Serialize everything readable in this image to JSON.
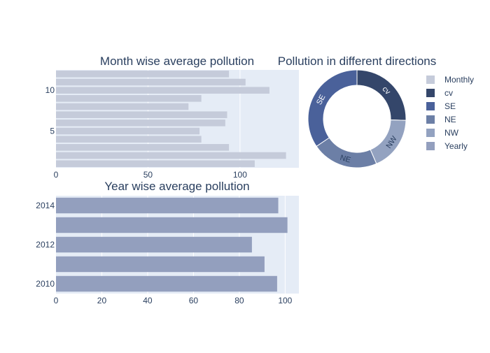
{
  "chart_data": [
    {
      "type": "bar",
      "orientation": "horizontal",
      "title": "Month wise average pollution",
      "series_name": "Monthly",
      "y": [
        1,
        2,
        3,
        4,
        5,
        6,
        7,
        8,
        9,
        10,
        11,
        12
      ],
      "values": [
        108,
        125,
        94,
        79,
        78,
        92,
        93,
        72,
        79,
        116,
        103,
        94
      ],
      "xlim": [
        0,
        132
      ],
      "ylim": [
        0.5,
        12.5
      ],
      "xticks": [
        0,
        50,
        100
      ],
      "yticks": [
        5,
        10
      ],
      "xticklabels": [
        "0",
        "50",
        "100"
      ],
      "yticklabels": [
        "5",
        "10"
      ],
      "color": "#c5cbda",
      "grid": true
    },
    {
      "type": "pie",
      "hole": true,
      "title": "Pollution in different directions",
      "labels": [
        "cv",
        "NW",
        "NE",
        "SE"
      ],
      "values": [
        25.5,
        18,
        22,
        34.5
      ],
      "colors": [
        "#34466a",
        "#93a2c0",
        "#6c7fa6",
        "#4a619a"
      ],
      "text_colors": [
        "#ffffff",
        "#2a3f5f",
        "#2a3f5f",
        "#ffffff"
      ]
    },
    {
      "type": "bar",
      "orientation": "horizontal",
      "title": "Year wise average pollution",
      "series_name": "Yearly",
      "y": [
        2010,
        2011,
        2012,
        2013,
        2014
      ],
      "values": [
        96.5,
        91,
        85.5,
        101,
        97
      ],
      "xlim": [
        0,
        106
      ],
      "ylim": [
        2009.5,
        2014.5
      ],
      "xticks": [
        0,
        20,
        40,
        60,
        80,
        100
      ],
      "yticks": [
        2010,
        2012,
        2014
      ],
      "xticklabels": [
        "0",
        "20",
        "40",
        "60",
        "80",
        "100"
      ],
      "yticklabels": [
        "2010",
        "2012",
        "2014"
      ],
      "color": "#939fbe",
      "grid": true
    }
  ],
  "legend": {
    "placement": "right",
    "items": [
      {
        "name": "Monthly",
        "color": "#c5cbda"
      },
      {
        "name": "cv",
        "color": "#34466a"
      },
      {
        "name": "SE",
        "color": "#4a619a"
      },
      {
        "name": "NE",
        "color": "#6c7fa6"
      },
      {
        "name": "NW",
        "color": "#93a2c0"
      },
      {
        "name": "Yearly",
        "color": "#939fbe"
      }
    ]
  }
}
